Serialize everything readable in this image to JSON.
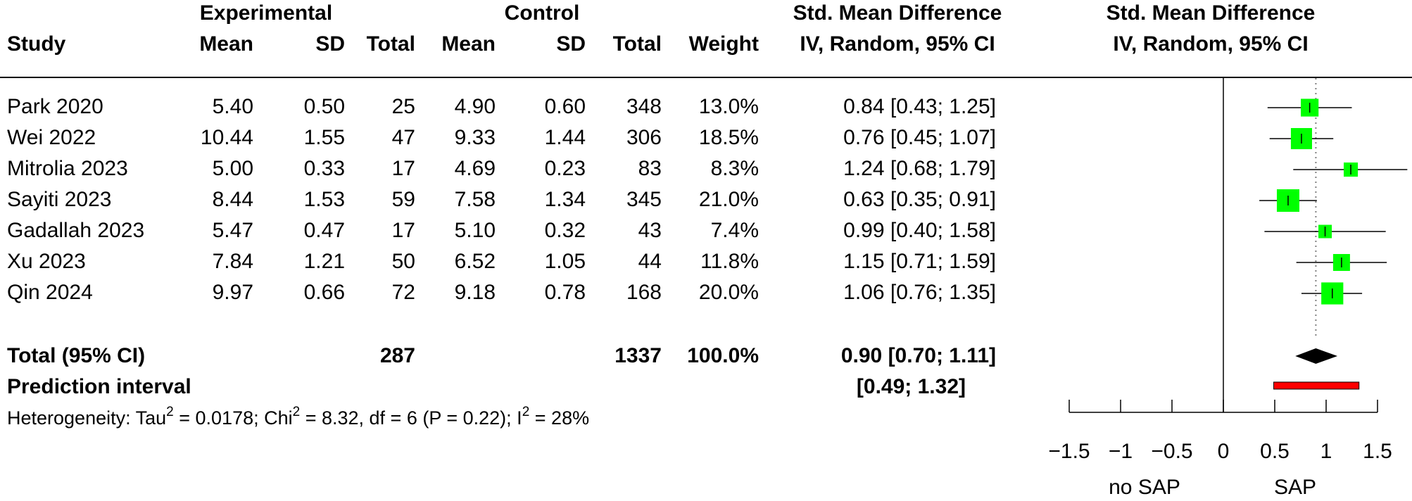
{
  "headers": {
    "study": "Study",
    "experimental": "Experimental",
    "control": "Control",
    "mean": "Mean",
    "sd": "SD",
    "total": "Total",
    "weight": "Weight",
    "smd_title": "Std. Mean Difference",
    "smd_sub": "IV, Random, 95% CI"
  },
  "studies": [
    {
      "study": "Park 2020",
      "e_mean": "5.40",
      "e_sd": "0.50",
      "e_total": "25",
      "c_mean": "4.90",
      "c_sd": "0.60",
      "c_total": "348",
      "weight": "13.0%",
      "ci": "0.84 [0.43; 1.25]"
    },
    {
      "study": "Wei 2022",
      "e_mean": "10.44",
      "e_sd": "1.55",
      "e_total": "47",
      "c_mean": "9.33",
      "c_sd": "1.44",
      "c_total": "306",
      "weight": "18.5%",
      "ci": "0.76 [0.45; 1.07]"
    },
    {
      "study": "Mitrolia 2023",
      "e_mean": "5.00",
      "e_sd": "0.33",
      "e_total": "17",
      "c_mean": "4.69",
      "c_sd": "0.23",
      "c_total": "83",
      "weight": "8.3%",
      "ci": "1.24 [0.68; 1.79]"
    },
    {
      "study": "Sayiti 2023",
      "e_mean": "8.44",
      "e_sd": "1.53",
      "e_total": "59",
      "c_mean": "7.58",
      "c_sd": "1.34",
      "c_total": "345",
      "weight": "21.0%",
      "ci": "0.63 [0.35; 0.91]"
    },
    {
      "study": "Gadallah 2023",
      "e_mean": "5.47",
      "e_sd": "0.47",
      "e_total": "17",
      "c_mean": "5.10",
      "c_sd": "0.32",
      "c_total": "43",
      "weight": "7.4%",
      "ci": "0.99 [0.40; 1.58]"
    },
    {
      "study": "Xu 2023",
      "e_mean": "7.84",
      "e_sd": "1.21",
      "e_total": "50",
      "c_mean": "6.52",
      "c_sd": "1.05",
      "c_total": "44",
      "weight": "11.8%",
      "ci": "1.15 [0.71; 1.59]"
    },
    {
      "study": "Qin 2024",
      "e_mean": "9.97",
      "e_sd": "0.66",
      "e_total": "72",
      "c_mean": "9.18",
      "c_sd": "0.78",
      "c_total": "168",
      "weight": "20.0%",
      "ci": "1.06 [0.76; 1.35]"
    }
  ],
  "total": {
    "label": "Total (95% CI)",
    "e_total": "287",
    "c_total": "1337",
    "weight": "100.0%",
    "ci": "0.90 [0.70; 1.11]"
  },
  "prediction": {
    "label": "Prediction interval",
    "ci": "[0.49; 1.32]"
  },
  "heterogeneity": {
    "prefix": "Heterogeneity: Tau",
    "tau2": "= 0.0178; Chi",
    "chi2": "= 8.32, df = 6 (P = 0.22); I",
    "i2": "= 28%",
    "sup": "2"
  },
  "axis_labels": {
    "left": "no SAP",
    "right": "SAP"
  },
  "colors": {
    "box": "#00ff00",
    "summary": "#000000",
    "prediction": "#ff0000",
    "reference_line": "#808080"
  },
  "chart_data": {
    "type": "forest",
    "effect": "Std. Mean Difference",
    "xlim": [
      -1.5,
      1.5
    ],
    "ticks": [
      -1.5,
      -1,
      -0.5,
      0,
      0.5,
      1,
      1.5
    ],
    "tick_labels": [
      "−1.5",
      "−1",
      "−0.5",
      "0",
      "0.5",
      "1",
      "1.5"
    ],
    "points": [
      {
        "study": "Park 2020",
        "est": 0.84,
        "lower": 0.43,
        "upper": 1.25,
        "weight": 13.0
      },
      {
        "study": "Wei 2022",
        "est": 0.76,
        "lower": 0.45,
        "upper": 1.07,
        "weight": 18.5
      },
      {
        "study": "Mitrolia 2023",
        "est": 1.24,
        "lower": 0.68,
        "upper": 1.79,
        "weight": 8.3
      },
      {
        "study": "Sayiti 2023",
        "est": 0.63,
        "lower": 0.35,
        "upper": 0.91,
        "weight": 21.0
      },
      {
        "study": "Gadallah 2023",
        "est": 0.99,
        "lower": 0.4,
        "upper": 1.58,
        "weight": 7.4
      },
      {
        "study": "Xu 2023",
        "est": 1.15,
        "lower": 0.71,
        "upper": 1.59,
        "weight": 11.8
      },
      {
        "study": "Qin 2024",
        "est": 1.06,
        "lower": 0.76,
        "upper": 1.35,
        "weight": 20.0
      }
    ],
    "summary": {
      "est": 0.9,
      "lower": 0.7,
      "upper": 1.11
    },
    "prediction_interval": {
      "lower": 0.49,
      "upper": 1.32
    },
    "reference_line": 0
  }
}
